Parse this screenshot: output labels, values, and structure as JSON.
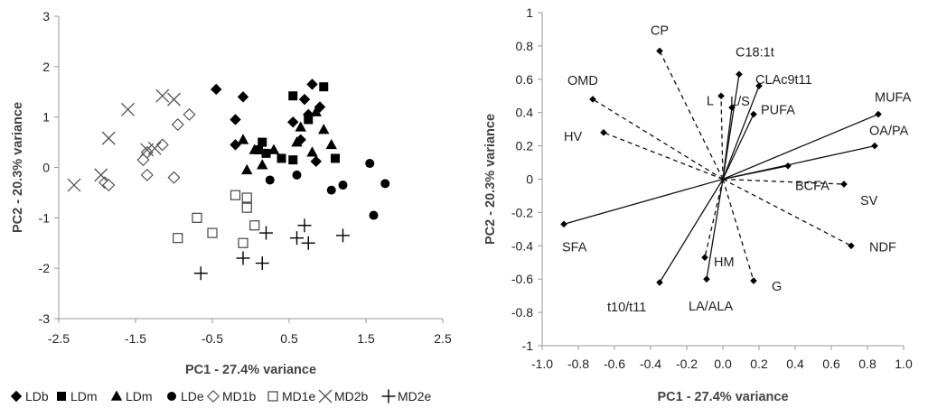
{
  "chart_data": [
    {
      "type": "scatter",
      "xlabel": "PC1 - 27.4% variance",
      "ylabel": "PC2 - 20.3% variance",
      "xlim": [
        -2.5,
        2.5
      ],
      "ylim": [
        -3,
        3
      ],
      "xticks": [
        "-2.5",
        "-1.5",
        "-0.5",
        "0.5",
        "1.5",
        "2.5"
      ],
      "xtick_values": [
        -2.5,
        -1.5,
        -0.5,
        0.5,
        1.5,
        2.5
      ],
      "yticks": [
        "3",
        "2",
        "1",
        "0",
        "-1",
        "-2",
        "-3"
      ],
      "ytick_values": [
        3,
        2,
        1,
        0,
        -1,
        -2,
        -3
      ],
      "grid": false,
      "legend_position": "bottom",
      "series": [
        {
          "name": "LDb",
          "marker": "diamond-filled",
          "x": [
            -0.45,
            -0.1,
            -0.2,
            0.8,
            0.7,
            0.9,
            0.55,
            0.75,
            -0.2,
            0.85,
            0.65
          ],
          "y": [
            1.55,
            1.4,
            0.95,
            1.65,
            1.35,
            1.2,
            0.9,
            1.05,
            0.45,
            0.12,
            0.55
          ]
        },
        {
          "name": "LDm",
          "marker": "square-filled",
          "x": [
            0.55,
            0.95,
            0.75,
            0.15,
            0.2,
            0.1,
            0.4,
            0.55,
            1.1
          ],
          "y": [
            1.42,
            1.6,
            0.95,
            0.5,
            0.28,
            0.35,
            0.18,
            0.15,
            0.18
          ]
        },
        {
          "name": "LDm",
          "marker": "triangle-filled",
          "x": [
            0.85,
            0.65,
            0.95,
            1.05,
            0.6,
            0.3,
            -0.1,
            0.05,
            0.15,
            -0.05,
            0.8
          ],
          "y": [
            1.1,
            0.8,
            0.75,
            0.45,
            0.5,
            0.35,
            0.55,
            0.35,
            0.05,
            -0.05,
            0.3
          ]
        },
        {
          "name": "LDe",
          "marker": "circle-filled",
          "x": [
            1.55,
            1.05,
            1.2,
            1.75,
            1.6,
            0.25,
            0.6
          ],
          "y": [
            0.08,
            -0.45,
            -0.35,
            -0.32,
            -0.95,
            -0.25,
            -0.15
          ]
        },
        {
          "name": "MD1b",
          "marker": "diamond-open",
          "x": [
            -0.8,
            -0.95,
            -1.15,
            -1.35,
            -1.4,
            -1.9,
            -1.85,
            -1.35,
            -1.0
          ],
          "y": [
            1.05,
            0.85,
            0.45,
            0.3,
            0.15,
            -0.3,
            -0.35,
            -0.15,
            -0.2
          ]
        },
        {
          "name": "MD1e",
          "marker": "square-open",
          "x": [
            -0.2,
            -0.05,
            -0.05,
            -0.7,
            0.05,
            -0.5,
            -0.95,
            -0.1
          ],
          "y": [
            -0.55,
            -0.6,
            -0.8,
            -1.0,
            -1.15,
            -1.3,
            -1.4,
            -1.5
          ]
        },
        {
          "name": "MD2b",
          "marker": "x",
          "x": [
            -1.15,
            -1.0,
            -1.6,
            -1.85,
            -1.35,
            -1.25,
            -1.95,
            -2.3
          ],
          "y": [
            1.42,
            1.35,
            1.15,
            0.58,
            0.35,
            0.38,
            -0.15,
            -0.35
          ]
        },
        {
          "name": "MD2e",
          "marker": "plus",
          "x": [
            0.7,
            0.2,
            0.6,
            0.75,
            1.2,
            -0.1,
            0.15,
            -0.65
          ],
          "y": [
            -1.15,
            -1.3,
            -1.4,
            -1.5,
            -1.35,
            -1.8,
            -1.9,
            -2.1
          ]
        }
      ]
    },
    {
      "type": "scatter",
      "subtype": "loadings-biplot",
      "xlabel": "PC1 - 27.4% variance",
      "ylabel": "PC2 - 20.3% variance",
      "xlim": [
        -1.0,
        1.0
      ],
      "ylim": [
        -1,
        1
      ],
      "xticks": [
        "-1.0",
        "-0.8",
        "-0.6",
        "-0.4",
        "-0.2",
        "0.0",
        "0.2",
        "0.4",
        "0.6",
        "0.8",
        "1.0"
      ],
      "xtick_values": [
        -1.0,
        -0.8,
        -0.6,
        -0.4,
        -0.2,
        0.0,
        0.2,
        0.4,
        0.6,
        0.8,
        1.0
      ],
      "yticks": [
        "1",
        "0.8",
        "0.6",
        "0.4",
        "0.2",
        "0",
        "-0.2",
        "-0.4",
        "-0.6",
        "-0.8",
        "-1"
      ],
      "ytick_values": [
        1,
        0.8,
        0.6,
        0.4,
        0.2,
        0,
        -0.2,
        -0.4,
        -0.6,
        -0.8,
        -1
      ],
      "grid": false,
      "vectors": [
        {
          "label": "CP",
          "x": -0.35,
          "y": 0.77,
          "style": "dashed"
        },
        {
          "label": "C18:1t",
          "x": 0.09,
          "y": 0.63,
          "style": "solid"
        },
        {
          "label": "CLAc9t11",
          "x": 0.2,
          "y": 0.56,
          "style": "solid"
        },
        {
          "label": "L",
          "x": -0.01,
          "y": 0.5,
          "style": "dashed"
        },
        {
          "label": "L/S",
          "x": 0.05,
          "y": 0.43,
          "style": "solid"
        },
        {
          "label": "OMD",
          "x": -0.72,
          "y": 0.48,
          "style": "dashed"
        },
        {
          "label": "PUFA",
          "x": 0.17,
          "y": 0.39,
          "style": "solid"
        },
        {
          "label": "MUFA",
          "x": 0.86,
          "y": 0.39,
          "style": "solid"
        },
        {
          "label": "HV",
          "x": -0.66,
          "y": 0.28,
          "style": "dashed"
        },
        {
          "label": "OA/PA",
          "x": 0.84,
          "y": 0.2,
          "style": "solid"
        },
        {
          "label": "BCFA",
          "x": 0.36,
          "y": 0.08,
          "style": "solid"
        },
        {
          "label": "SV",
          "x": 0.67,
          "y": -0.03,
          "style": "dashed"
        },
        {
          "label": "SFA",
          "x": -0.88,
          "y": -0.27,
          "style": "solid"
        },
        {
          "label": "NDF",
          "x": 0.71,
          "y": -0.4,
          "style": "dashed"
        },
        {
          "label": "HM",
          "x": -0.1,
          "y": -0.47,
          "style": "dashed"
        },
        {
          "label": "t10/t11",
          "x": -0.35,
          "y": -0.62,
          "style": "solid"
        },
        {
          "label": "LA/ALA",
          "x": -0.09,
          "y": -0.6,
          "style": "solid"
        },
        {
          "label": "G",
          "x": 0.17,
          "y": -0.61,
          "style": "dashed"
        }
      ]
    }
  ]
}
